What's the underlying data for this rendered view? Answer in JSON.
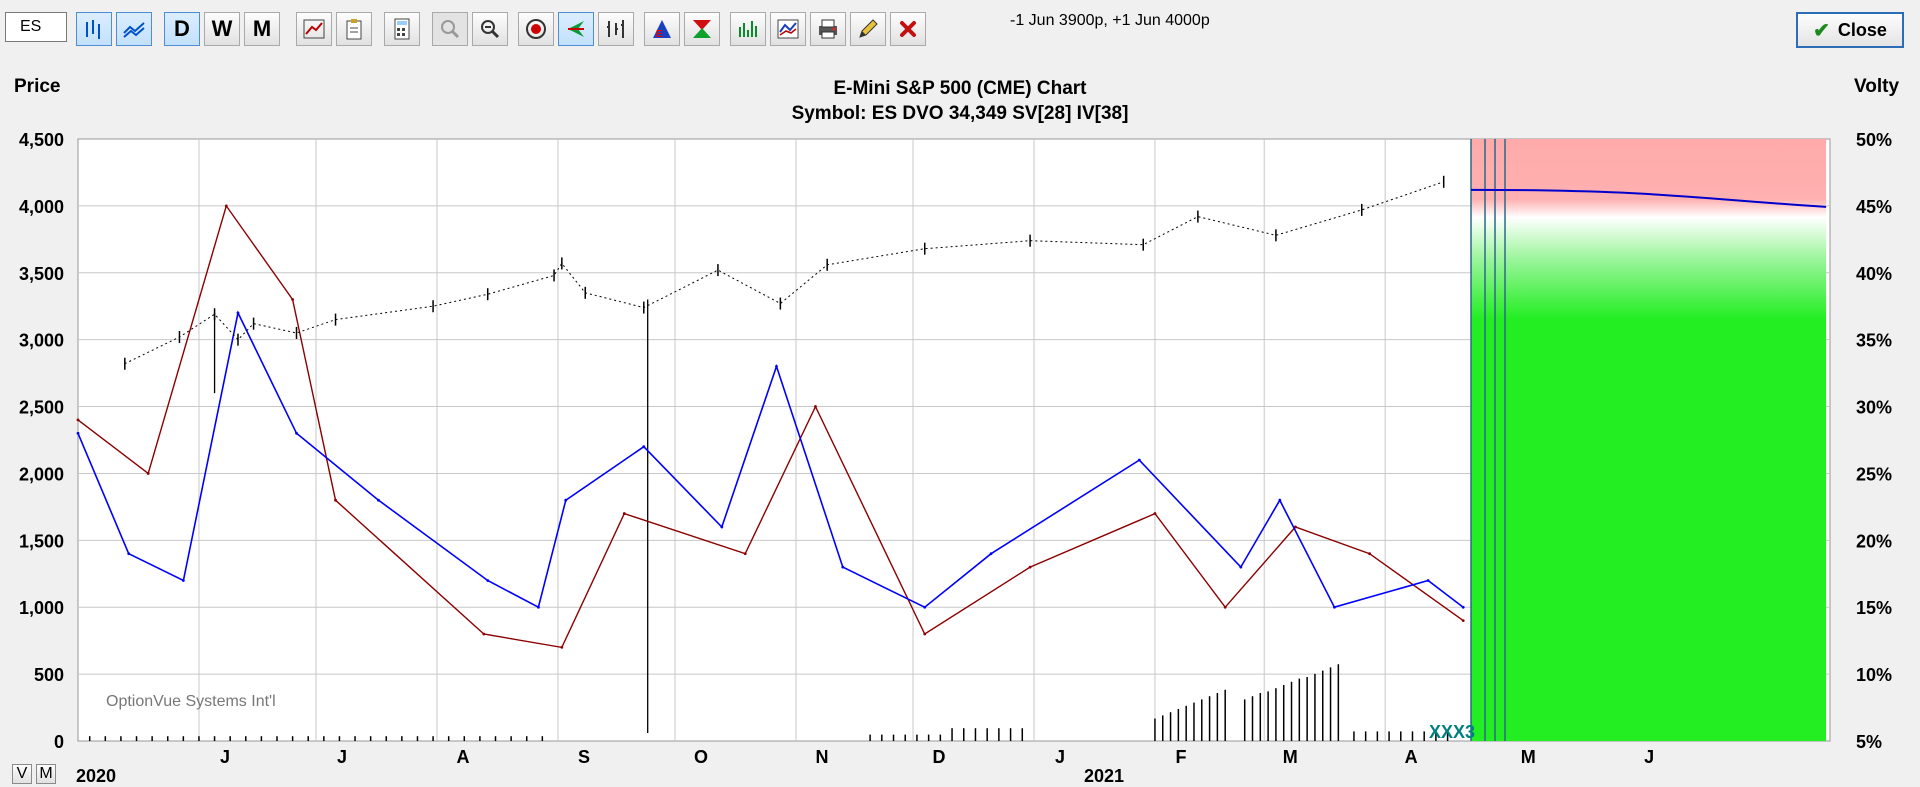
{
  "toolbar": {
    "symbol_value": "ES",
    "status_text": "-1 Jun 3900p, +1 Jun 4000p",
    "period_buttons": [
      "D",
      "W",
      "M"
    ],
    "close_label": "Close"
  },
  "view_buttons": [
    "V",
    "M"
  ],
  "colors": {
    "price": "#000000",
    "iv": "#0000ff",
    "sv": "#8b0000",
    "projection_profit": "#22ee22",
    "projection_loss": "#ffaaaa",
    "projection_line": "#0000cc",
    "marker": "#008080"
  },
  "chart_data": {
    "type": "line",
    "title": "E-Mini S&P 500 (CME) Chart",
    "subtitle": "Symbol: ES  DVO 34,349  SV[28]  IV[38]",
    "left_axis_label": "Price",
    "right_axis_label": "Volty",
    "left_ticks": [
      "4,500",
      "4,000",
      "3,500",
      "3,000",
      "2,500",
      "2,000",
      "1,500",
      "1,000",
      "500",
      "0"
    ],
    "right_ticks": [
      "50%",
      "45%",
      "40%",
      "35%",
      "30%",
      "25%",
      "20%",
      "15%",
      "10%",
      "5%"
    ],
    "ylim_left": [
      0,
      4500
    ],
    "ylim_right": [
      5,
      50
    ],
    "month_labels": [
      "J",
      "J",
      "A",
      "S",
      "O",
      "N",
      "D",
      "J",
      "F",
      "M",
      "A",
      "M",
      "J"
    ],
    "year_labels": [
      "2020",
      "2021"
    ],
    "watermark": "OptionVue Systems Int'l",
    "marker_label": "XXX3",
    "price_series": [
      {
        "date": "2020-05-13",
        "value": 2820
      },
      {
        "date": "2020-05-27",
        "value": 3020
      },
      {
        "date": "2020-06-05",
        "value": 3190
      },
      {
        "date": "2020-06-11",
        "value": 3000
      },
      {
        "date": "2020-06-15",
        "value": 3120
      },
      {
        "date": "2020-06-26",
        "value": 3050
      },
      {
        "date": "2020-07-06",
        "value": 3150
      },
      {
        "date": "2020-07-31",
        "value": 3250
      },
      {
        "date": "2020-08-14",
        "value": 3340
      },
      {
        "date": "2020-08-31",
        "value": 3480
      },
      {
        "date": "2020-09-02",
        "value": 3570
      },
      {
        "date": "2020-09-08",
        "value": 3350
      },
      {
        "date": "2020-09-23",
        "value": 3240
      },
      {
        "date": "2020-10-12",
        "value": 3520
      },
      {
        "date": "2020-10-28",
        "value": 3270
      },
      {
        "date": "2020-11-09",
        "value": 3560
      },
      {
        "date": "2020-12-04",
        "value": 3680
      },
      {
        "date": "2020-12-31",
        "value": 3740
      },
      {
        "date": "2021-01-29",
        "value": 3710
      },
      {
        "date": "2021-02-12",
        "value": 3920
      },
      {
        "date": "2021-03-04",
        "value": 3780
      },
      {
        "date": "2021-03-26",
        "value": 3970
      },
      {
        "date": "2021-04-16",
        "value": 4180
      }
    ],
    "implied_volatility_pct": [
      {
        "date": "2020-05-01",
        "value": 28
      },
      {
        "date": "2020-05-14",
        "value": 19
      },
      {
        "date": "2020-05-28",
        "value": 17
      },
      {
        "date": "2020-06-11",
        "value": 37
      },
      {
        "date": "2020-06-26",
        "value": 28
      },
      {
        "date": "2020-07-17",
        "value": 23
      },
      {
        "date": "2020-08-14",
        "value": 17
      },
      {
        "date": "2020-08-27",
        "value": 15
      },
      {
        "date": "2020-09-03",
        "value": 23
      },
      {
        "date": "2020-09-23",
        "value": 27
      },
      {
        "date": "2020-10-13",
        "value": 21
      },
      {
        "date": "2020-10-27",
        "value": 33
      },
      {
        "date": "2020-11-13",
        "value": 18
      },
      {
        "date": "2020-12-04",
        "value": 15
      },
      {
        "date": "2020-12-21",
        "value": 19
      },
      {
        "date": "2021-01-28",
        "value": 26
      },
      {
        "date": "2021-02-23",
        "value": 18
      },
      {
        "date": "2021-03-05",
        "value": 23
      },
      {
        "date": "2021-03-19",
        "value": 15
      },
      {
        "date": "2021-04-12",
        "value": 17
      },
      {
        "date": "2021-04-21",
        "value": 15
      }
    ],
    "statistical_volatility_pct": [
      {
        "date": "2020-05-01",
        "value": 29
      },
      {
        "date": "2020-05-19",
        "value": 25
      },
      {
        "date": "2020-06-08",
        "value": 45
      },
      {
        "date": "2020-06-25",
        "value": 38
      },
      {
        "date": "2020-07-06",
        "value": 23
      },
      {
        "date": "2020-08-13",
        "value": 13
      },
      {
        "date": "2020-09-02",
        "value": 12
      },
      {
        "date": "2020-09-18",
        "value": 22
      },
      {
        "date": "2020-10-19",
        "value": 19
      },
      {
        "date": "2020-11-06",
        "value": 30
      },
      {
        "date": "2020-12-04",
        "value": 13
      },
      {
        "date": "2020-12-31",
        "value": 18
      },
      {
        "date": "2021-02-01",
        "value": 22
      },
      {
        "date": "2021-02-19",
        "value": 15
      },
      {
        "date": "2021-03-09",
        "value": 21
      },
      {
        "date": "2021-03-28",
        "value": 19
      },
      {
        "date": "2021-04-21",
        "value": 14
      }
    ],
    "projection_start": "2021-04-23",
    "projection_end": "2021-07-23",
    "grid": true
  }
}
